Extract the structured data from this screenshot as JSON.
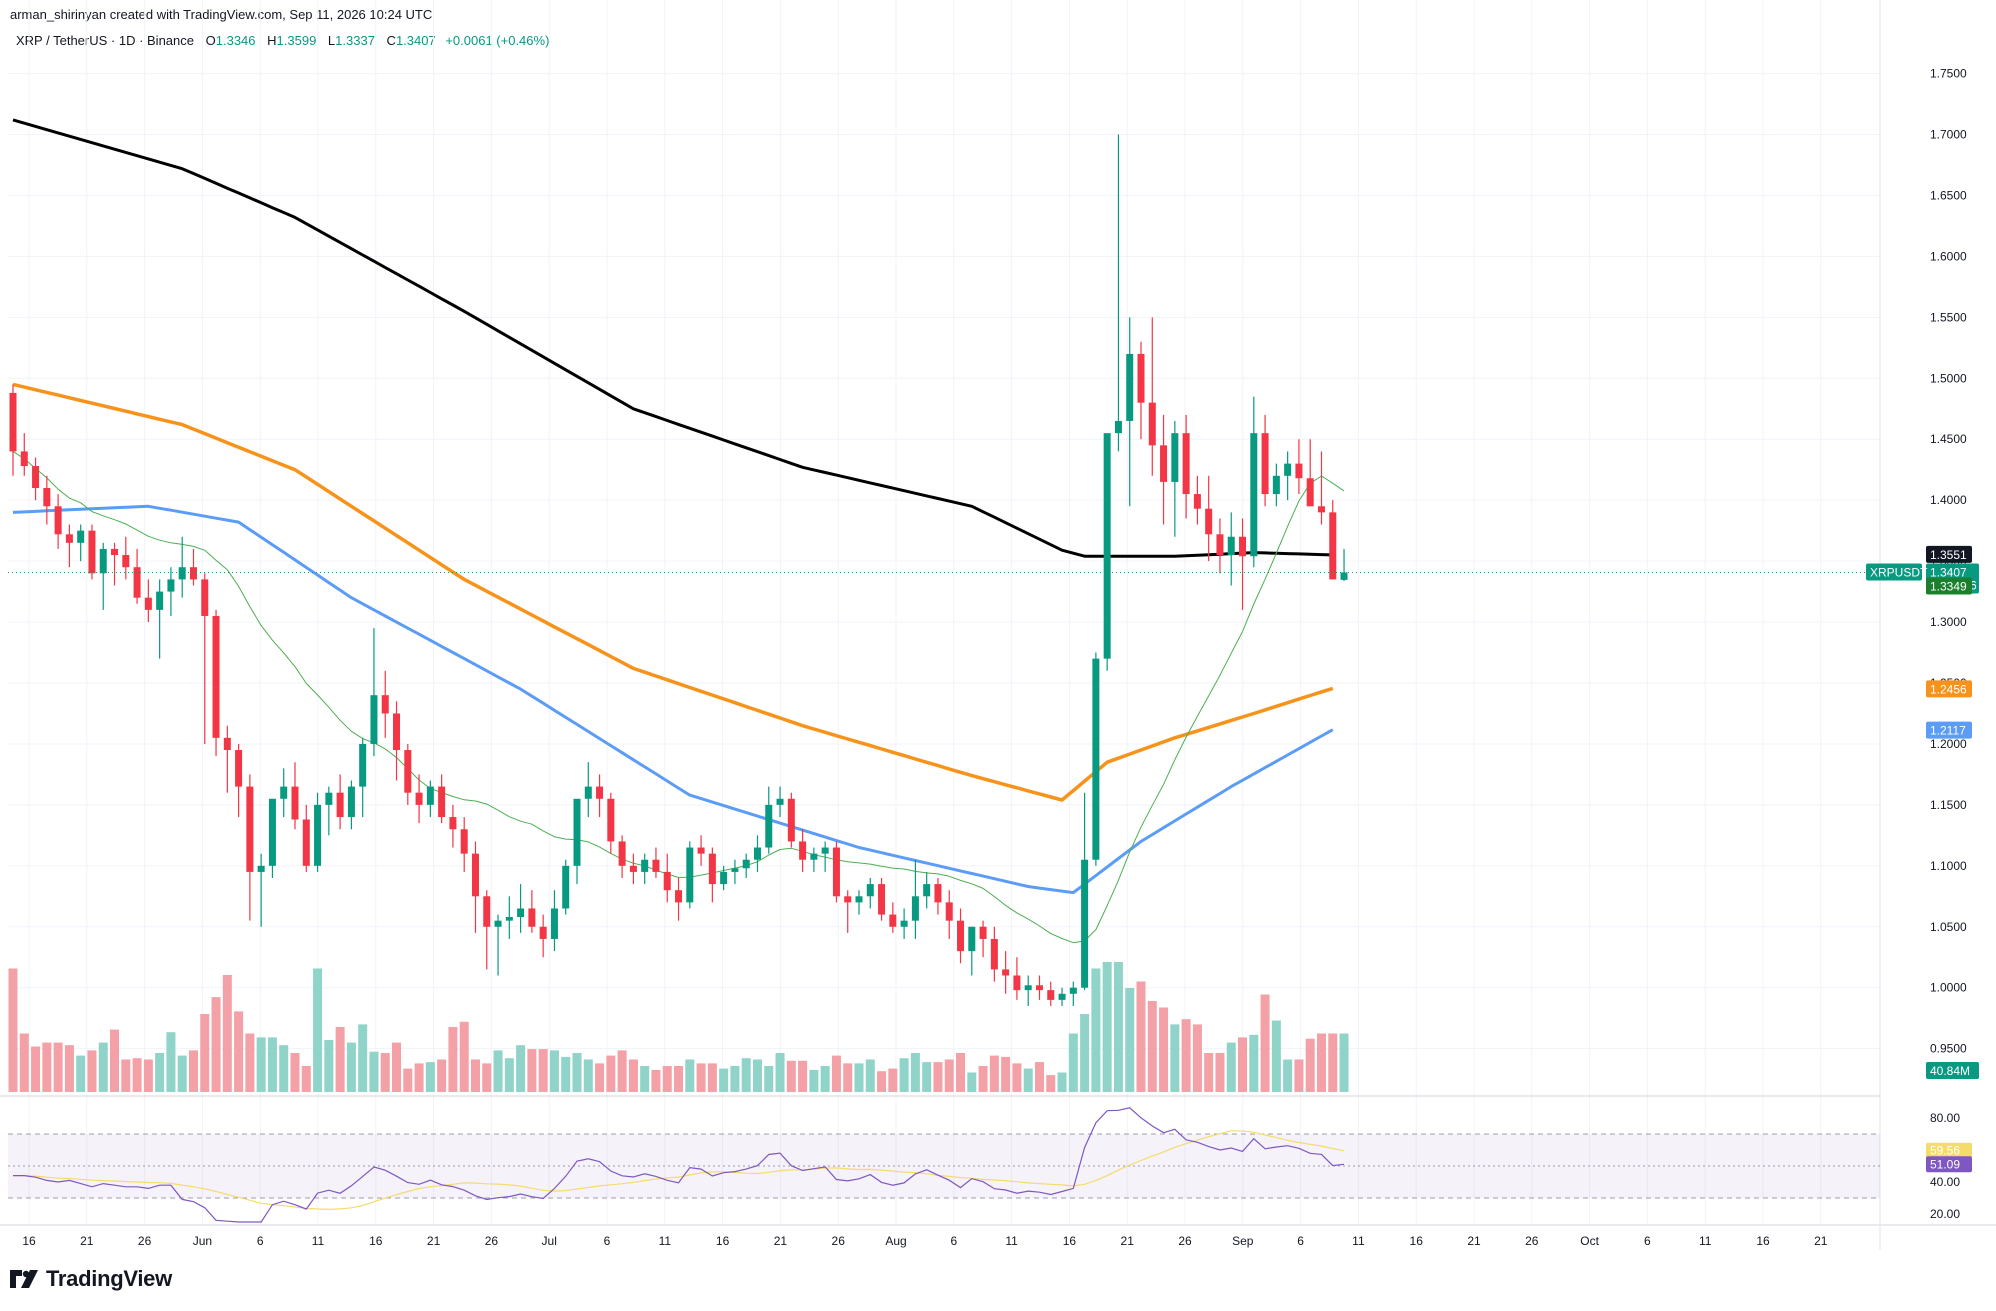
{
  "header": {
    "credit": "arman_shirinyan created with TradingView.com, Sep 11, 2026 10:24 UTC",
    "symbol": "XRP / TetherUS · 1D · Binance",
    "ohlc": [
      {
        "label": "O",
        "value": "1.3346"
      },
      {
        "label": "H",
        "value": "1.3599"
      },
      {
        "label": "L",
        "value": "1.3337"
      },
      {
        "label": "C",
        "value": "1.3407"
      },
      {
        "label": "",
        "value": "+0.0061 (+0.46%)"
      }
    ]
  },
  "footer": {
    "brand": "TradingView"
  },
  "colors": {
    "up": "#089981",
    "down": "#f23645",
    "vol_up": "#8fd3c9",
    "vol_down": "#f3a0a6",
    "ma200": "#000000",
    "ma100": "#f7931a",
    "ma50": "#5b9cf6",
    "ma20": "#4caf50",
    "rsi": "#7e57c2",
    "rsi_ma": "#f5dc6a"
  },
  "chart_data": [
    {
      "type": "candlestick",
      "symbol": "XRPUSDT",
      "y_ticks": [
        "1.7500",
        "1.7000",
        "1.6500",
        "1.6000",
        "1.5500",
        "1.5000",
        "1.4500",
        "1.4000",
        "1.3500",
        "1.3000",
        "1.2500",
        "1.2000",
        "1.1500",
        "1.1000",
        "1.0500",
        "1.0000",
        "0.9500"
      ],
      "ylim": [
        0.915,
        1.78
      ],
      "x_ticks": [
        "16",
        "21",
        "26",
        "Jun",
        "6",
        "11",
        "16",
        "21",
        "26",
        "Jul",
        "6",
        "11",
        "16",
        "21",
        "26",
        "Aug",
        "6",
        "11",
        "16",
        "21",
        "26",
        "Sep",
        "6",
        "11",
        "16",
        "21",
        "26",
        "Oct",
        "6",
        "11",
        "16",
        "21"
      ],
      "candles_ohlc": [
        [
          1.488,
          1.495,
          1.42,
          1.44
        ],
        [
          1.44,
          1.455,
          1.42,
          1.428
        ],
        [
          1.428,
          1.435,
          1.4,
          1.41
        ],
        [
          1.41,
          1.42,
          1.38,
          1.395
        ],
        [
          1.395,
          1.405,
          1.36,
          1.372
        ],
        [
          1.372,
          1.38,
          1.345,
          1.365
        ],
        [
          1.365,
          1.38,
          1.35,
          1.375
        ],
        [
          1.375,
          1.38,
          1.335,
          1.34
        ],
        [
          1.34,
          1.365,
          1.31,
          1.36
        ],
        [
          1.36,
          1.365,
          1.33,
          1.355
        ],
        [
          1.355,
          1.37,
          1.335,
          1.345
        ],
        [
          1.345,
          1.36,
          1.315,
          1.32
        ],
        [
          1.32,
          1.335,
          1.3,
          1.31
        ],
        [
          1.31,
          1.335,
          1.27,
          1.325
        ],
        [
          1.325,
          1.345,
          1.305,
          1.335
        ],
        [
          1.335,
          1.37,
          1.32,
          1.345
        ],
        [
          1.345,
          1.36,
          1.33,
          1.335
        ],
        [
          1.335,
          1.34,
          1.2,
          1.305
        ],
        [
          1.305,
          1.31,
          1.19,
          1.205
        ],
        [
          1.205,
          1.215,
          1.16,
          1.195
        ],
        [
          1.195,
          1.2,
          1.14,
          1.165
        ],
        [
          1.165,
          1.175,
          1.055,
          1.095
        ],
        [
          1.095,
          1.11,
          1.05,
          1.1
        ],
        [
          1.1,
          1.155,
          1.09,
          1.155
        ],
        [
          1.155,
          1.18,
          1.14,
          1.165
        ],
        [
          1.165,
          1.185,
          1.13,
          1.138
        ],
        [
          1.138,
          1.15,
          1.095,
          1.1
        ],
        [
          1.1,
          1.16,
          1.095,
          1.15
        ],
        [
          1.15,
          1.165,
          1.125,
          1.16
        ],
        [
          1.16,
          1.175,
          1.13,
          1.14
        ],
        [
          1.14,
          1.17,
          1.13,
          1.165
        ],
        [
          1.165,
          1.205,
          1.14,
          1.2
        ],
        [
          1.2,
          1.295,
          1.19,
          1.24
        ],
        [
          1.24,
          1.26,
          1.205,
          1.225
        ],
        [
          1.225,
          1.235,
          1.17,
          1.195
        ],
        [
          1.195,
          1.2,
          1.15,
          1.16
        ],
        [
          1.16,
          1.175,
          1.135,
          1.15
        ],
        [
          1.15,
          1.17,
          1.14,
          1.165
        ],
        [
          1.165,
          1.175,
          1.135,
          1.14
        ],
        [
          1.14,
          1.15,
          1.115,
          1.13
        ],
        [
          1.13,
          1.14,
          1.095,
          1.11
        ],
        [
          1.11,
          1.12,
          1.045,
          1.075
        ],
        [
          1.075,
          1.08,
          1.015,
          1.05
        ],
        [
          1.05,
          1.06,
          1.01,
          1.055
        ],
        [
          1.055,
          1.075,
          1.04,
          1.058
        ],
        [
          1.058,
          1.085,
          1.045,
          1.065
        ],
        [
          1.065,
          1.08,
          1.045,
          1.05
        ],
        [
          1.05,
          1.06,
          1.025,
          1.04
        ],
        [
          1.04,
          1.08,
          1.03,
          1.065
        ],
        [
          1.065,
          1.105,
          1.06,
          1.1
        ],
        [
          1.1,
          1.145,
          1.085,
          1.155
        ],
        [
          1.155,
          1.185,
          1.14,
          1.165
        ],
        [
          1.165,
          1.175,
          1.14,
          1.155
        ],
        [
          1.155,
          1.16,
          1.11,
          1.12
        ],
        [
          1.12,
          1.125,
          1.09,
          1.1
        ],
        [
          1.1,
          1.11,
          1.085,
          1.095
        ],
        [
          1.095,
          1.11,
          1.085,
          1.105
        ],
        [
          1.105,
          1.115,
          1.09,
          1.095
        ],
        [
          1.095,
          1.11,
          1.07,
          1.08
        ],
        [
          1.08,
          1.09,
          1.055,
          1.07
        ],
        [
          1.07,
          1.12,
          1.065,
          1.115
        ],
        [
          1.115,
          1.125,
          1.1,
          1.11
        ],
        [
          1.11,
          1.115,
          1.07,
          1.085
        ],
        [
          1.085,
          1.1,
          1.08,
          1.095
        ],
        [
          1.095,
          1.105,
          1.085,
          1.098
        ],
        [
          1.098,
          1.11,
          1.09,
          1.105
        ],
        [
          1.105,
          1.125,
          1.095,
          1.115
        ],
        [
          1.115,
          1.165,
          1.11,
          1.15
        ],
        [
          1.15,
          1.165,
          1.14,
          1.155
        ],
        [
          1.155,
          1.16,
          1.115,
          1.12
        ],
        [
          1.12,
          1.13,
          1.095,
          1.105
        ],
        [
          1.105,
          1.115,
          1.095,
          1.11
        ],
        [
          1.11,
          1.12,
          1.095,
          1.115
        ],
        [
          1.115,
          1.12,
          1.07,
          1.075
        ],
        [
          1.075,
          1.08,
          1.045,
          1.07
        ],
        [
          1.07,
          1.08,
          1.06,
          1.075
        ],
        [
          1.075,
          1.09,
          1.065,
          1.085
        ],
        [
          1.085,
          1.09,
          1.055,
          1.06
        ],
        [
          1.06,
          1.07,
          1.045,
          1.05
        ],
        [
          1.05,
          1.065,
          1.04,
          1.055
        ],
        [
          1.055,
          1.105,
          1.04,
          1.075
        ],
        [
          1.075,
          1.095,
          1.065,
          1.085
        ],
        [
          1.085,
          1.09,
          1.06,
          1.07
        ],
        [
          1.07,
          1.08,
          1.04,
          1.055
        ],
        [
          1.055,
          1.065,
          1.02,
          1.03
        ],
        [
          1.03,
          1.05,
          1.01,
          1.05
        ],
        [
          1.05,
          1.055,
          1.025,
          1.04
        ],
        [
          1.04,
          1.05,
          1.005,
          1.015
        ],
        [
          1.015,
          1.03,
          0.995,
          1.01
        ],
        [
          1.01,
          1.025,
          0.99,
          0.998
        ],
        [
          0.998,
          1.01,
          0.985,
          1.002
        ],
        [
          1.002,
          1.01,
          0.99,
          0.998
        ],
        [
          0.998,
          1.005,
          0.985,
          0.99
        ],
        [
          0.99,
          1.0,
          0.985,
          0.995
        ],
        [
          0.995,
          1.005,
          0.985,
          1.0
        ],
        [
          1.0,
          1.16,
          0.998,
          1.105
        ],
        [
          1.105,
          1.275,
          1.1,
          1.27
        ],
        [
          1.27,
          1.42,
          1.26,
          1.455
        ],
        [
          1.455,
          1.7,
          1.44,
          1.465
        ],
        [
          1.465,
          1.55,
          1.395,
          1.52
        ],
        [
          1.52,
          1.53,
          1.45,
          1.48
        ],
        [
          1.48,
          1.55,
          1.42,
          1.445
        ],
        [
          1.445,
          1.47,
          1.38,
          1.415
        ],
        [
          1.415,
          1.465,
          1.37,
          1.455
        ],
        [
          1.455,
          1.47,
          1.385,
          1.405
        ],
        [
          1.405,
          1.42,
          1.38,
          1.393
        ],
        [
          1.393,
          1.42,
          1.35,
          1.372
        ],
        [
          1.372,
          1.385,
          1.34,
          1.355
        ],
        [
          1.355,
          1.39,
          1.33,
          1.37
        ],
        [
          1.37,
          1.385,
          1.31,
          1.354
        ],
        [
          1.354,
          1.485,
          1.345,
          1.455
        ],
        [
          1.455,
          1.47,
          1.395,
          1.405
        ],
        [
          1.405,
          1.43,
          1.395,
          1.42
        ],
        [
          1.42,
          1.44,
          1.4,
          1.43
        ],
        [
          1.43,
          1.45,
          1.405,
          1.418
        ],
        [
          1.418,
          1.45,
          1.395,
          1.395
        ],
        [
          1.395,
          1.44,
          1.38,
          1.39
        ],
        [
          1.39,
          1.4,
          1.335,
          1.335
        ],
        [
          1.3346,
          1.3599,
          1.3337,
          1.3407
        ]
      ],
      "last_price": "1.3407",
      "countdown": "13:35:56",
      "ma_labels": {
        "ma200": "1.3551",
        "ma20": "1.3349",
        "ma100": "1.2456",
        "ma50": "1.2117"
      },
      "volume_last": "40.84M",
      "volumes": [
        0.95,
        0.45,
        0.35,
        0.38,
        0.38,
        0.36,
        0.28,
        0.32,
        0.38,
        0.48,
        0.25,
        0.26,
        0.25,
        0.3,
        0.46,
        0.28,
        0.32,
        0.6,
        0.73,
        0.9,
        0.62,
        0.45,
        0.42,
        0.42,
        0.36,
        0.3,
        0.2,
        0.95,
        0.4,
        0.5,
        0.38,
        0.52,
        0.31,
        0.3,
        0.38,
        0.18,
        0.22,
        0.23,
        0.25,
        0.5,
        0.54,
        0.25,
        0.22,
        0.32,
        0.26,
        0.36,
        0.33,
        0.33,
        0.32,
        0.27,
        0.3,
        0.25,
        0.22,
        0.28,
        0.32,
        0.25,
        0.2,
        0.17,
        0.2,
        0.2,
        0.25,
        0.22,
        0.22,
        0.18,
        0.2,
        0.26,
        0.25,
        0.2,
        0.3,
        0.24,
        0.24,
        0.17,
        0.2,
        0.28,
        0.22,
        0.22,
        0.25,
        0.16,
        0.18,
        0.26,
        0.3,
        0.23,
        0.23,
        0.25,
        0.3,
        0.15,
        0.2,
        0.28,
        0.27,
        0.22,
        0.18,
        0.23,
        0.13,
        0.15,
        0.45,
        0.6,
        0.95,
        1.0,
        1.0,
        0.8,
        0.85,
        0.7,
        0.65,
        0.52,
        0.56,
        0.52,
        0.3,
        0.3,
        0.38,
        0.42,
        0.44,
        0.75,
        0.55,
        0.25,
        0.25,
        0.41,
        0.45,
        0.45,
        0.45,
        0.15
      ]
    },
    {
      "type": "line",
      "name": "RSI",
      "y_ticks": [
        "80.00",
        "40.00",
        "20.00"
      ],
      "ylim": [
        15,
        88
      ],
      "rsi_value": "51.09",
      "rsi_ma_value": "59.56",
      "bands": [
        70,
        50,
        30
      ]
    }
  ]
}
